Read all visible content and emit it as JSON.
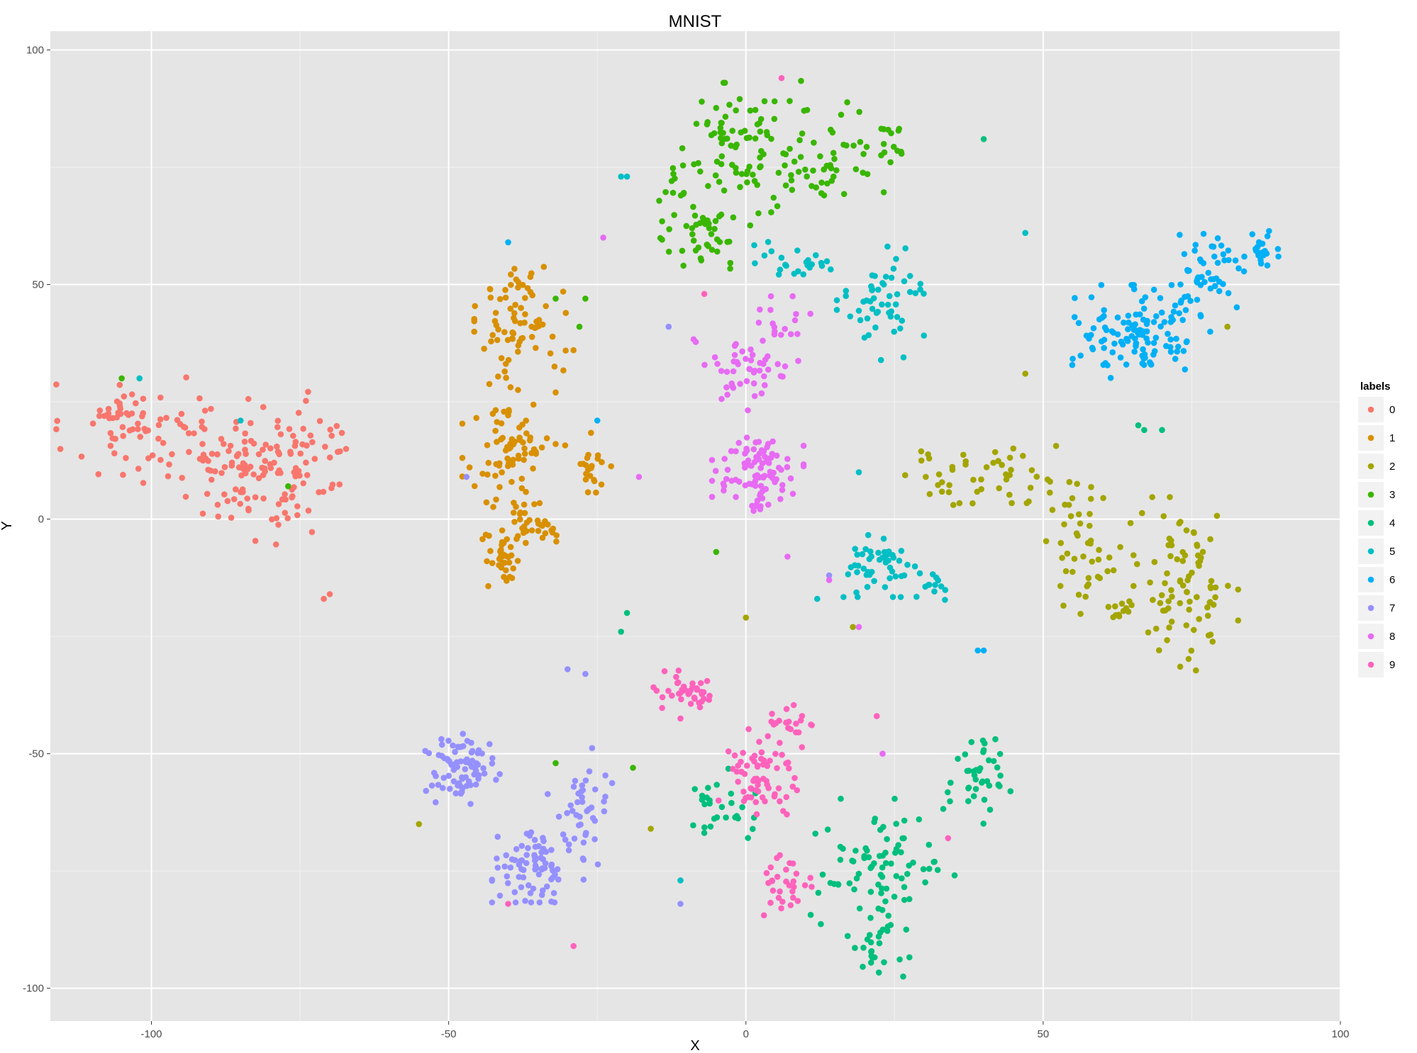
{
  "chart_data": {
    "type": "scatter",
    "title": "MNIST",
    "xlabel": "X",
    "ylabel": "Y",
    "xlim": [
      -117,
      100
    ],
    "ylim": [
      -107,
      104
    ],
    "xticks": [
      -100,
      -50,
      0,
      50,
      100
    ],
    "yticks": [
      100,
      50,
      0,
      -50,
      -100
    ],
    "grid": true,
    "legend": {
      "title": "labels",
      "placement": "right",
      "entries": [
        "0",
        "1",
        "2",
        "3",
        "4",
        "5",
        "6",
        "7",
        "8",
        "9"
      ]
    },
    "colors": [
      "#F8766D",
      "#D89000",
      "#A3A500",
      "#39B600",
      "#00BF7D",
      "#00BFC4",
      "#00B0F6",
      "#9590FF",
      "#E76BF3",
      "#FF62BC"
    ],
    "clusters": [
      {
        "label": "0",
        "regions": [
          {
            "cx": -94,
            "cy": 17,
            "sx": 20,
            "sy": 12,
            "n": 75
          },
          {
            "cx": -84,
            "cy": 10,
            "sx": 12,
            "sy": 14,
            "n": 70
          },
          {
            "cx": -74,
            "cy": 12,
            "sx": 8,
            "sy": 12,
            "n": 45
          },
          {
            "cx": -105,
            "cy": 22,
            "sx": 5,
            "sy": 6,
            "n": 35
          }
        ]
      },
      {
        "label": "1",
        "regions": [
          {
            "cx": -38,
            "cy": 42,
            "sx": 7,
            "sy": 12,
            "n": 75
          },
          {
            "cx": -40,
            "cy": 15,
            "sx": 7,
            "sy": 14,
            "n": 75
          },
          {
            "cx": -35,
            "cy": 0,
            "sx": 5,
            "sy": 6,
            "n": 35
          },
          {
            "cx": -41,
            "cy": -9,
            "sx": 3,
            "sy": 6,
            "n": 35
          },
          {
            "cx": -26,
            "cy": 12,
            "sx": 4,
            "sy": 7,
            "n": 22
          }
        ]
      },
      {
        "label": "2",
        "regions": [
          {
            "cx": 74,
            "cy": -14,
            "sx": 8,
            "sy": 17,
            "n": 85
          },
          {
            "cx": 57,
            "cy": -7,
            "sx": 7,
            "sy": 12,
            "n": 40
          },
          {
            "cx": 41,
            "cy": 9,
            "sx": 16,
            "sy": 6,
            "n": 55
          },
          {
            "cx": 63,
            "cy": -20,
            "sx": 5,
            "sy": 3,
            "n": 12
          }
        ]
      },
      {
        "label": "3",
        "regions": [
          {
            "cx": 10,
            "cy": 78,
            "sx": 12,
            "sy": 14,
            "n": 85
          },
          {
            "cx": -8,
            "cy": 65,
            "sx": 9,
            "sy": 12,
            "n": 60
          },
          {
            "cx": -3,
            "cy": 82,
            "sx": 7,
            "sy": 10,
            "n": 40
          },
          {
            "cx": 25,
            "cy": 80,
            "sx": 3,
            "sy": 5,
            "n": 12
          }
        ]
      },
      {
        "label": "4",
        "regions": [
          {
            "cx": 23,
            "cy": -75,
            "sx": 11,
            "sy": 14,
            "n": 85
          },
          {
            "cx": 39,
            "cy": -55,
            "sx": 5,
            "sy": 9,
            "n": 40
          },
          {
            "cx": 22,
            "cy": -92,
            "sx": 5,
            "sy": 5,
            "n": 22
          },
          {
            "cx": -5,
            "cy": -62,
            "sx": 6,
            "sy": 8,
            "n": 28
          }
        ]
      },
      {
        "label": "5",
        "regions": [
          {
            "cx": 23,
            "cy": -10,
            "sx": 6,
            "sy": 6,
            "n": 50
          },
          {
            "cx": 23,
            "cy": 46,
            "sx": 7,
            "sy": 11,
            "n": 55
          },
          {
            "cx": 8,
            "cy": 55,
            "sx": 6,
            "sy": 4,
            "n": 25
          },
          {
            "cx": 32,
            "cy": -14,
            "sx": 3,
            "sy": 3,
            "n": 12
          }
        ]
      },
      {
        "label": "6",
        "regions": [
          {
            "cx": 66,
            "cy": 40,
            "sx": 11,
            "sy": 9,
            "n": 120
          },
          {
            "cx": 78,
            "cy": 52,
            "sx": 6,
            "sy": 8,
            "n": 50
          },
          {
            "cx": 87,
            "cy": 57,
            "sx": 3,
            "sy": 4,
            "n": 20
          }
        ]
      },
      {
        "label": "7",
        "regions": [
          {
            "cx": -48,
            "cy": -53,
            "sx": 6,
            "sy": 7,
            "n": 80
          },
          {
            "cx": -35,
            "cy": -74,
            "sx": 7,
            "sy": 7,
            "n": 80
          },
          {
            "cx": -28,
            "cy": -62,
            "sx": 5,
            "sy": 12,
            "n": 40
          }
        ]
      },
      {
        "label": "8",
        "regions": [
          {
            "cx": 2,
            "cy": 10,
            "sx": 7,
            "sy": 8,
            "n": 90
          },
          {
            "cx": 0,
            "cy": 32,
            "sx": 8,
            "sy": 8,
            "n": 50
          },
          {
            "cx": 6,
            "cy": 42,
            "sx": 6,
            "sy": 5,
            "n": 15
          }
        ]
      },
      {
        "label": "9",
        "regions": [
          {
            "cx": -10,
            "cy": -37,
            "sx": 6,
            "sy": 5,
            "n": 40
          },
          {
            "cx": 2,
            "cy": -55,
            "sx": 6,
            "sy": 10,
            "n": 65
          },
          {
            "cx": 7,
            "cy": -78,
            "sx": 4,
            "sy": 8,
            "n": 30
          },
          {
            "cx": 7,
            "cy": -45,
            "sx": 5,
            "sy": 5,
            "n": 20
          }
        ]
      }
    ],
    "strays": [
      {
        "label": "0",
        "x": -71,
        "y": -17
      },
      {
        "label": "0",
        "x": -70,
        "y": -16
      },
      {
        "label": "3",
        "x": -105,
        "y": 30
      },
      {
        "label": "3",
        "x": -77,
        "y": 7
      },
      {
        "label": "3",
        "x": -32,
        "y": 47
      },
      {
        "label": "3",
        "x": -27,
        "y": 47
      },
      {
        "label": "3",
        "x": -28,
        "y": 41
      },
      {
        "label": "3",
        "x": -5,
        "y": -7
      },
      {
        "label": "3",
        "x": -32,
        "y": -52
      },
      {
        "label": "3",
        "x": -19,
        "y": -53
      },
      {
        "label": "4",
        "x": -20,
        "y": -20
      },
      {
        "label": "4",
        "x": -21,
        "y": -24
      },
      {
        "label": "4",
        "x": 66,
        "y": 20
      },
      {
        "label": "4",
        "x": 67,
        "y": 19
      },
      {
        "label": "4",
        "x": 70,
        "y": 19
      },
      {
        "label": "4",
        "x": 40,
        "y": 81
      },
      {
        "label": "5",
        "x": -102,
        "y": 30
      },
      {
        "label": "5",
        "x": -85,
        "y": 21
      },
      {
        "label": "5",
        "x": -21,
        "y": 73
      },
      {
        "label": "5",
        "x": -20,
        "y": 73
      },
      {
        "label": "5",
        "x": 47,
        "y": 61
      },
      {
        "label": "5",
        "x": 19,
        "y": 10
      },
      {
        "label": "5",
        "x": -11,
        "y": -77
      },
      {
        "label": "5",
        "x": 12,
        "y": -17
      },
      {
        "label": "6",
        "x": 39,
        "y": -28
      },
      {
        "label": "6",
        "x": 40,
        "y": -28
      },
      {
        "label": "6",
        "x": -25,
        "y": 21
      },
      {
        "label": "6",
        "x": -40,
        "y": 59
      },
      {
        "label": "7",
        "x": -47,
        "y": 9
      },
      {
        "label": "7",
        "x": -13,
        "y": 41
      },
      {
        "label": "7",
        "x": -30,
        "y": -32
      },
      {
        "label": "7",
        "x": -27,
        "y": -33
      },
      {
        "label": "7",
        "x": 14,
        "y": -12
      },
      {
        "label": "7",
        "x": -11,
        "y": -82
      },
      {
        "label": "8",
        "x": -24,
        "y": 60
      },
      {
        "label": "8",
        "x": -18,
        "y": 9
      },
      {
        "label": "8",
        "x": 19,
        "y": -23
      },
      {
        "label": "8",
        "x": 23,
        "y": -50
      },
      {
        "label": "8",
        "x": 7,
        "y": -8
      },
      {
        "label": "8",
        "x": 14,
        "y": -13
      },
      {
        "label": "9",
        "x": 6,
        "y": 94
      },
      {
        "label": "9",
        "x": -7,
        "y": 48
      },
      {
        "label": "9",
        "x": -29,
        "y": -91
      },
      {
        "label": "9",
        "x": -40,
        "y": -82
      },
      {
        "label": "9",
        "x": 22,
        "y": -42
      },
      {
        "label": "9",
        "x": 34,
        "y": -68
      },
      {
        "label": "2",
        "x": -55,
        "y": -65
      },
      {
        "label": "2",
        "x": -16,
        "y": -66
      },
      {
        "label": "2",
        "x": 0,
        "y": -21
      },
      {
        "label": "2",
        "x": 47,
        "y": 31
      },
      {
        "label": "2",
        "x": 81,
        "y": 41
      },
      {
        "label": "2",
        "x": 18,
        "y": -23
      },
      {
        "label": "1",
        "x": -32,
        "y": 27
      },
      {
        "label": "1",
        "x": -32,
        "y": 16
      },
      {
        "label": "1",
        "x": -29,
        "y": 36
      }
    ]
  }
}
